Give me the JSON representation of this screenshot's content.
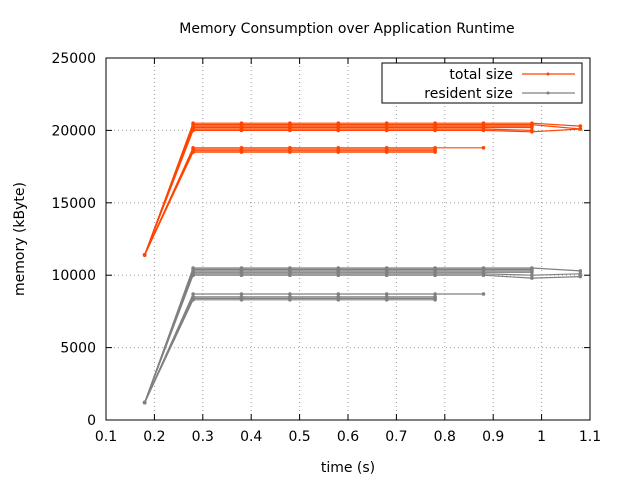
{
  "chart_data": {
    "type": "line",
    "title": "Memory Consumption over Application Runtime",
    "xlabel": "time (s)",
    "ylabel": "memory  (kByte)",
    "xlim": [
      0.1,
      1.1
    ],
    "ylim": [
      0,
      25000
    ],
    "xticks": [
      "0.1",
      "0.2",
      "0.3",
      "0.4",
      "0.5",
      "0.6",
      "0.7",
      "0.8",
      "0.9",
      "1",
      "1.1"
    ],
    "yticks": [
      "0",
      "5000",
      "10000",
      "15000",
      "20000",
      "25000"
    ],
    "grid": true,
    "legend_position": "top-right",
    "series": [
      {
        "name": "total size",
        "color": "#ff4500",
        "runs": [
          [
            [
              0.18,
              11400
            ],
            [
              0.28,
              20500
            ],
            [
              0.38,
              20500
            ],
            [
              0.48,
              20500
            ],
            [
              0.58,
              20500
            ],
            [
              0.68,
              20500
            ],
            [
              0.78,
              20500
            ],
            [
              0.88,
              20500
            ],
            [
              0.98,
              20500
            ],
            [
              1.08,
              20300
            ]
          ],
          [
            [
              0.18,
              11400
            ],
            [
              0.28,
              20400
            ],
            [
              0.38,
              20400
            ],
            [
              0.48,
              20400
            ],
            [
              0.58,
              20400
            ],
            [
              0.68,
              20400
            ],
            [
              0.78,
              20400
            ],
            [
              0.88,
              20400
            ],
            [
              0.98,
              20400
            ],
            [
              1.08,
              20100
            ]
          ],
          [
            [
              0.18,
              11400
            ],
            [
              0.28,
              20300
            ],
            [
              0.38,
              20300
            ],
            [
              0.48,
              20300
            ],
            [
              0.58,
              20300
            ],
            [
              0.68,
              20300
            ],
            [
              0.78,
              20300
            ],
            [
              0.88,
              20300
            ],
            [
              0.98,
              20300
            ]
          ],
          [
            [
              0.18,
              11400
            ],
            [
              0.28,
              20200
            ],
            [
              0.38,
              20200
            ],
            [
              0.48,
              20200
            ],
            [
              0.58,
              20200
            ],
            [
              0.68,
              20200
            ],
            [
              0.78,
              20200
            ],
            [
              0.88,
              20200
            ],
            [
              0.98,
              20200
            ]
          ],
          [
            [
              0.18,
              11400
            ],
            [
              0.28,
              20100
            ],
            [
              0.38,
              20100
            ],
            [
              0.48,
              20100
            ],
            [
              0.58,
              20100
            ],
            [
              0.68,
              20100
            ],
            [
              0.78,
              20100
            ],
            [
              0.88,
              20100
            ],
            [
              0.98,
              20000
            ]
          ],
          [
            [
              0.18,
              11400
            ],
            [
              0.28,
              20000
            ],
            [
              0.38,
              20000
            ],
            [
              0.48,
              20000
            ],
            [
              0.58,
              20000
            ],
            [
              0.68,
              20000
            ],
            [
              0.78,
              20000
            ],
            [
              0.88,
              20000
            ],
            [
              0.98,
              19900
            ],
            [
              1.08,
              20100
            ]
          ],
          [
            [
              0.18,
              11400
            ],
            [
              0.28,
              18800
            ],
            [
              0.38,
              18800
            ],
            [
              0.48,
              18800
            ],
            [
              0.58,
              18800
            ],
            [
              0.68,
              18800
            ],
            [
              0.78,
              18800
            ],
            [
              0.88,
              18800
            ]
          ],
          [
            [
              0.18,
              11400
            ],
            [
              0.28,
              18700
            ],
            [
              0.38,
              18700
            ],
            [
              0.48,
              18700
            ],
            [
              0.58,
              18700
            ],
            [
              0.68,
              18700
            ],
            [
              0.78,
              18700
            ]
          ],
          [
            [
              0.18,
              11400
            ],
            [
              0.28,
              18600
            ],
            [
              0.38,
              18600
            ],
            [
              0.48,
              18600
            ],
            [
              0.58,
              18600
            ],
            [
              0.68,
              18600
            ],
            [
              0.78,
              18600
            ]
          ],
          [
            [
              0.18,
              11400
            ],
            [
              0.28,
              18500
            ],
            [
              0.38,
              18500
            ],
            [
              0.48,
              18500
            ],
            [
              0.58,
              18500
            ],
            [
              0.68,
              18500
            ],
            [
              0.78,
              18500
            ]
          ]
        ]
      },
      {
        "name": "resident size",
        "color": "#808080",
        "runs": [
          [
            [
              0.18,
              1200
            ],
            [
              0.28,
              10500
            ],
            [
              0.38,
              10500
            ],
            [
              0.48,
              10500
            ],
            [
              0.58,
              10500
            ],
            [
              0.68,
              10500
            ],
            [
              0.78,
              10500
            ],
            [
              0.88,
              10500
            ],
            [
              0.98,
              10500
            ],
            [
              1.08,
              10300
            ]
          ],
          [
            [
              0.18,
              1200
            ],
            [
              0.28,
              10400
            ],
            [
              0.38,
              10400
            ],
            [
              0.48,
              10400
            ],
            [
              0.58,
              10400
            ],
            [
              0.68,
              10400
            ],
            [
              0.78,
              10400
            ],
            [
              0.88,
              10400
            ],
            [
              0.98,
              10400
            ]
          ],
          [
            [
              0.18,
              1200
            ],
            [
              0.28,
              10300
            ],
            [
              0.38,
              10300
            ],
            [
              0.48,
              10300
            ],
            [
              0.58,
              10300
            ],
            [
              0.68,
              10300
            ],
            [
              0.78,
              10300
            ],
            [
              0.88,
              10300
            ],
            [
              0.98,
              10300
            ]
          ],
          [
            [
              0.18,
              1200
            ],
            [
              0.28,
              10200
            ],
            [
              0.38,
              10200
            ],
            [
              0.48,
              10200
            ],
            [
              0.58,
              10200
            ],
            [
              0.68,
              10200
            ],
            [
              0.78,
              10200
            ],
            [
              0.88,
              10200
            ],
            [
              0.98,
              10200
            ]
          ],
          [
            [
              0.18,
              1200
            ],
            [
              0.28,
              10100
            ],
            [
              0.38,
              10100
            ],
            [
              0.48,
              10100
            ],
            [
              0.58,
              10100
            ],
            [
              0.68,
              10100
            ],
            [
              0.78,
              10100
            ],
            [
              0.88,
              10100
            ],
            [
              0.98,
              10000
            ],
            [
              1.08,
              10100
            ]
          ],
          [
            [
              0.18,
              1200
            ],
            [
              0.28,
              10000
            ],
            [
              0.38,
              10000
            ],
            [
              0.48,
              10000
            ],
            [
              0.58,
              10000
            ],
            [
              0.68,
              10000
            ],
            [
              0.78,
              10000
            ],
            [
              0.88,
              10000
            ],
            [
              0.98,
              9800
            ],
            [
              1.08,
              9900
            ]
          ],
          [
            [
              0.18,
              1200
            ],
            [
              0.28,
              8700
            ],
            [
              0.38,
              8700
            ],
            [
              0.48,
              8700
            ],
            [
              0.58,
              8700
            ],
            [
              0.68,
              8700
            ],
            [
              0.78,
              8700
            ],
            [
              0.88,
              8700
            ]
          ],
          [
            [
              0.18,
              1200
            ],
            [
              0.28,
              8500
            ],
            [
              0.38,
              8500
            ],
            [
              0.48,
              8500
            ],
            [
              0.58,
              8500
            ],
            [
              0.68,
              8500
            ],
            [
              0.78,
              8500
            ]
          ],
          [
            [
              0.18,
              1200
            ],
            [
              0.28,
              8400
            ],
            [
              0.38,
              8400
            ],
            [
              0.48,
              8400
            ],
            [
              0.58,
              8400
            ],
            [
              0.68,
              8400
            ],
            [
              0.78,
              8400
            ]
          ],
          [
            [
              0.18,
              1200
            ],
            [
              0.28,
              8300
            ],
            [
              0.38,
              8300
            ],
            [
              0.48,
              8300
            ],
            [
              0.58,
              8300
            ],
            [
              0.68,
              8300
            ],
            [
              0.78,
              8300
            ]
          ]
        ]
      }
    ]
  }
}
